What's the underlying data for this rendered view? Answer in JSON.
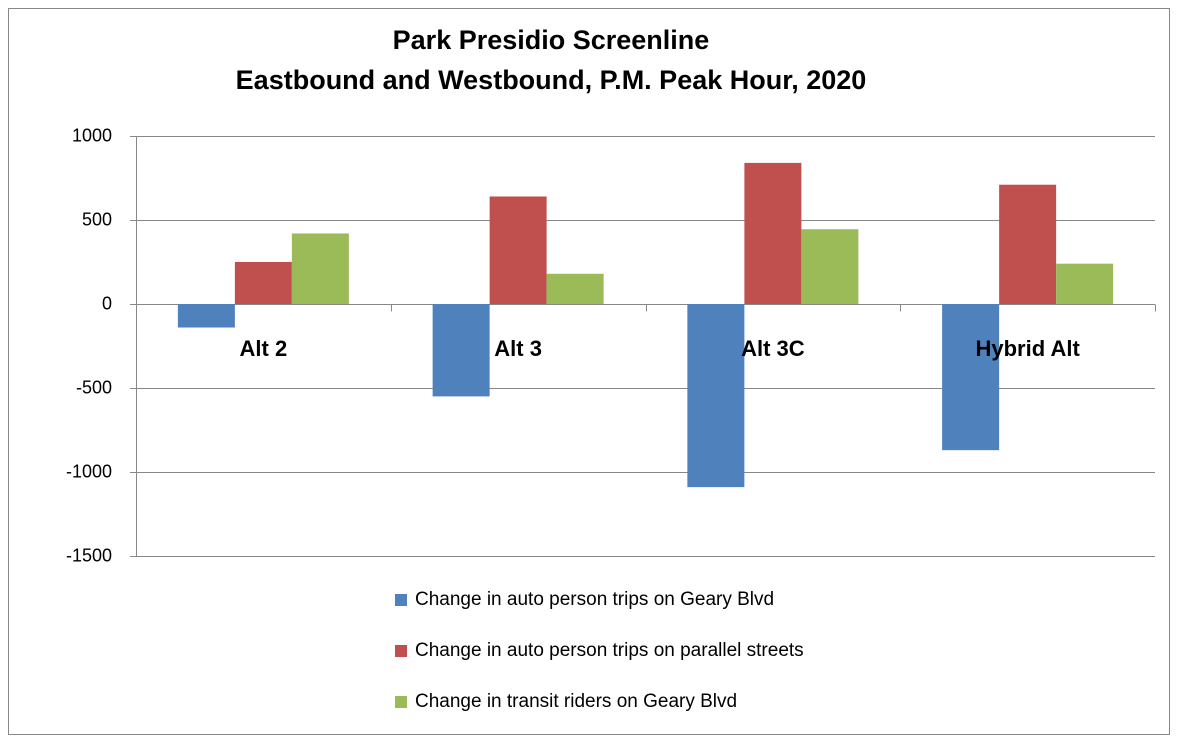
{
  "chart_data": {
    "type": "bar",
    "title": [
      "Park Presidio Screenline",
      "Eastbound and Westbound, P.M. Peak Hour, 2020"
    ],
    "categories": [
      "Alt 2",
      "Alt 3",
      "Alt 3C",
      "Hybrid Alt"
    ],
    "series": [
      {
        "name": "Change in auto person trips on Geary Blvd",
        "color": "#4f81bd",
        "values": [
          -140,
          -550,
          -1090,
          -870
        ]
      },
      {
        "name": "Change in auto person trips on parallel streets",
        "color": "#c0504d",
        "values": [
          250,
          640,
          840,
          710
        ]
      },
      {
        "name": "Change in transit riders on Geary Blvd",
        "color": "#9bbb59",
        "values": [
          420,
          180,
          445,
          240
        ]
      }
    ],
    "ylim": [
      -1500,
      1000
    ],
    "yticks": [
      -1500,
      -1000,
      -500,
      0,
      500,
      1000
    ],
    "grid": true,
    "legend": "bottom"
  }
}
